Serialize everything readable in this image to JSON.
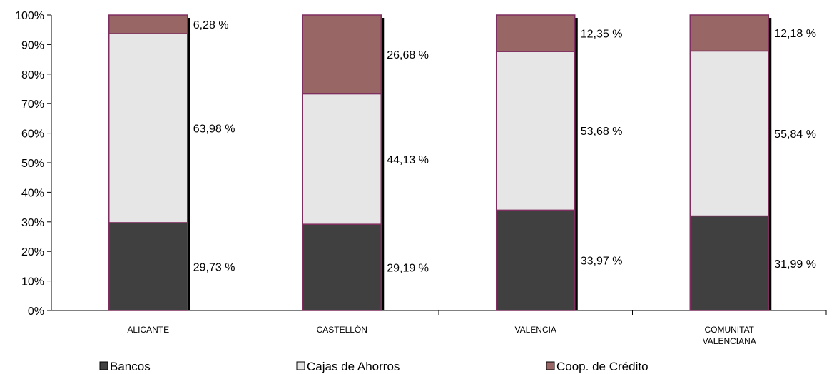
{
  "chart_data": {
    "type": "bar",
    "stacked": true,
    "percent_stacked": true,
    "title": "",
    "xlabel": "",
    "ylabel": "",
    "ylim": [
      0,
      100
    ],
    "y_ticks": [
      "0%",
      "10%",
      "20%",
      "30%",
      "40%",
      "50%",
      "60%",
      "70%",
      "80%",
      "90%",
      "100%"
    ],
    "grid": false,
    "legend_position": "bottom",
    "categories": [
      [
        "ALICANTE"
      ],
      [
        "CASTELLÓN"
      ],
      [
        "VALENCIA"
      ],
      [
        "COMUNITAT",
        "VALENCIANA"
      ]
    ],
    "series": [
      {
        "name": "Bancos",
        "color": "#404040",
        "values": [
          29.73,
          29.19,
          33.97,
          31.99
        ],
        "labels": [
          "29,73 %",
          "29,19 %",
          "33,97 %",
          "31,99 %"
        ]
      },
      {
        "name": "Cajas de Ahorros",
        "color": "#e6e6e6",
        "values": [
          63.98,
          44.13,
          53.68,
          55.84
        ],
        "labels": [
          "63,98 %",
          "44,13 %",
          "53,68 %",
          "55,84 %"
        ]
      },
      {
        "name": "Coop. de Crédito",
        "color": "#996666",
        "values": [
          6.28,
          26.68,
          12.35,
          12.18
        ],
        "labels": [
          "6,28 %",
          "26,68 %",
          "12,35 %",
          "12,18 %"
        ]
      }
    ],
    "bar_edge_color": "#7f2f5f"
  }
}
